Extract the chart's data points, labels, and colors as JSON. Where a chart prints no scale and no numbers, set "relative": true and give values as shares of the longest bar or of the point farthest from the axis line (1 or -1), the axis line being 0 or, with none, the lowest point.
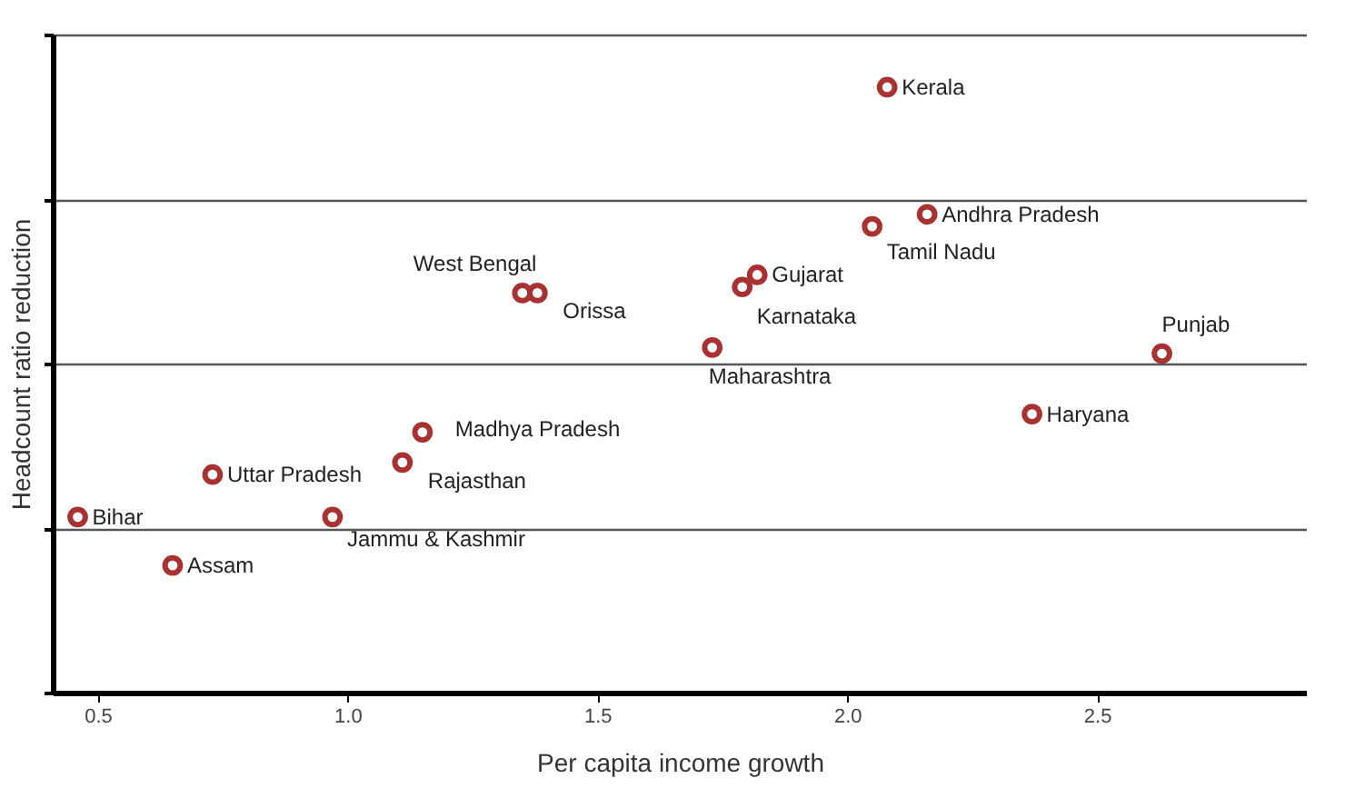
{
  "chart_data": {
    "type": "scatter",
    "xlabel": "Per capita income growth",
    "ylabel": "Headcount ratio reduction",
    "relative": true,
    "xlim": [
      0.41,
      2.92
    ],
    "xticks": [
      {
        "value": 0.5,
        "label": "0.5"
      },
      {
        "value": 1.0,
        "label": "1.0"
      },
      {
        "value": 1.5,
        "label": "1.5"
      },
      {
        "value": 2.0,
        "label": "2.0"
      },
      {
        "value": 2.5,
        "label": "2.5"
      }
    ],
    "grid": "y",
    "marker": "circle",
    "series": [
      {
        "color": "#a83232",
        "x": [
          2.08,
          2.16,
          2.05,
          1.82,
          1.79,
          1.35,
          1.38,
          1.73,
          2.63,
          2.37,
          1.15,
          1.11,
          0.73,
          0.46,
          0.97,
          0.65
        ],
        "values": [
          1.0,
          0.79,
          0.77,
          0.69,
          0.67,
          0.66,
          0.66,
          0.57,
          0.56,
          0.46,
          0.43,
          0.38,
          0.36,
          0.29,
          0.29,
          0.21
        ]
      }
    ],
    "annotations": [
      {
        "text": "Kerala",
        "x": 2.08,
        "y": 1.0
      },
      {
        "text": "Andhra Pradesh",
        "x": 2.16,
        "y": 0.79
      },
      {
        "text": "Tamil Nadu",
        "x": 2.05,
        "y": 0.77
      },
      {
        "text": "Gujarat",
        "x": 1.82,
        "y": 0.69
      },
      {
        "text": "Karnataka",
        "x": 1.79,
        "y": 0.67
      },
      {
        "text": "West Bengal",
        "x": 1.35,
        "y": 0.66
      },
      {
        "text": "Orissa",
        "x": 1.38,
        "y": 0.66
      },
      {
        "text": "Maharashtra",
        "x": 1.73,
        "y": 0.57
      },
      {
        "text": "Punjab",
        "x": 2.63,
        "y": 0.56
      },
      {
        "text": "Haryana",
        "x": 2.37,
        "y": 0.46
      },
      {
        "text": "Madhya Pradesh",
        "x": 1.15,
        "y": 0.43
      },
      {
        "text": "Rajasthan",
        "x": 1.11,
        "y": 0.38
      },
      {
        "text": "Uttar Pradesh",
        "x": 0.73,
        "y": 0.36
      },
      {
        "text": "Bihar",
        "x": 0.46,
        "y": 0.29
      },
      {
        "text": "Jammu & Kashmir",
        "x": 0.97,
        "y": 0.29
      },
      {
        "text": "Assam",
        "x": 0.65,
        "y": 0.21
      }
    ]
  }
}
